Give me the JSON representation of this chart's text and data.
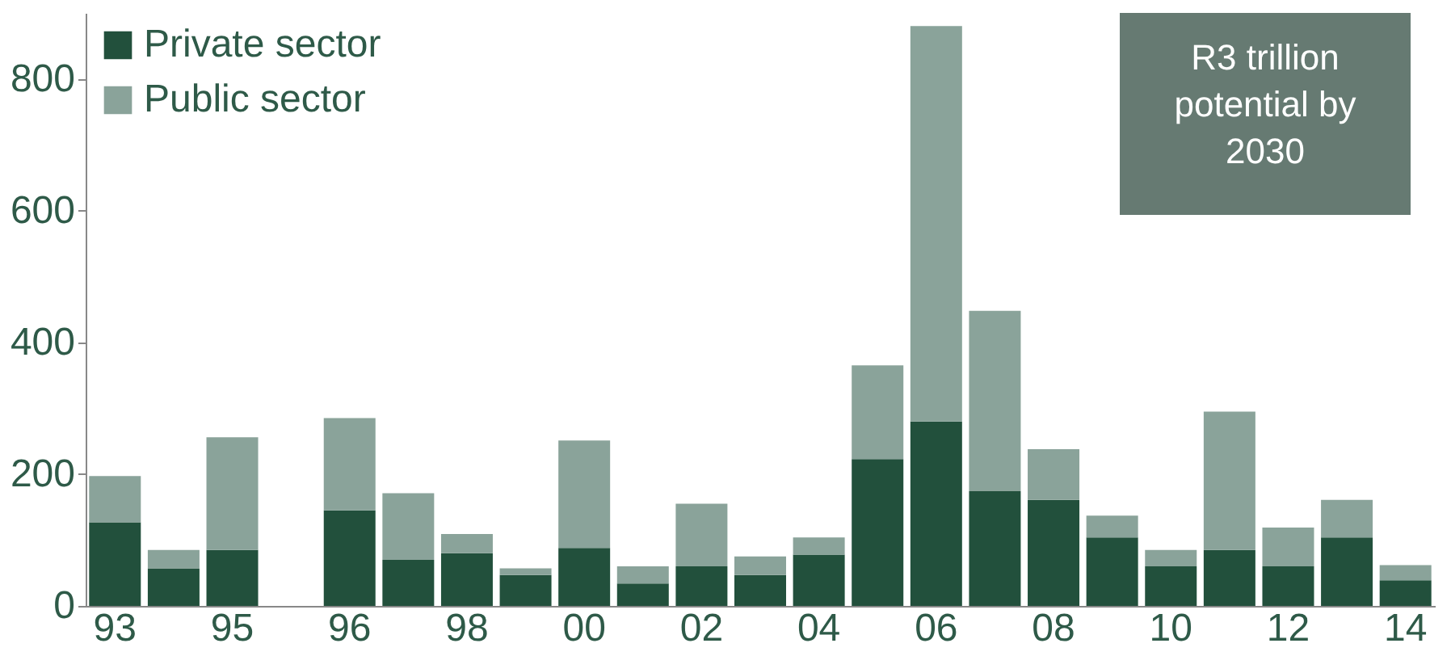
{
  "chart_data": {
    "type": "bar",
    "stacked": true,
    "categories": [
      "93",
      null,
      "95",
      null,
      "96",
      null,
      "98",
      null,
      "00",
      null,
      "02",
      null,
      "04",
      null,
      "06",
      null,
      "08",
      null,
      "10",
      null,
      "12",
      null,
      "14"
    ],
    "series": [
      {
        "name": "Private sector",
        "color": "#22503c",
        "values": [
          127,
          57,
          85,
          null,
          145,
          70,
          80,
          47,
          88,
          34,
          60,
          47,
          78,
          223,
          280,
          174,
          161,
          104,
          60,
          85,
          60,
          104,
          39
        ]
      },
      {
        "name": "Public sector",
        "color": "#8aa39a",
        "values": [
          70,
          28,
          171,
          null,
          140,
          101,
          29,
          10,
          163,
          26,
          95,
          28,
          26,
          142,
          600,
          274,
          77,
          33,
          25,
          210,
          59,
          57,
          23
        ]
      }
    ],
    "ylim": [
      0,
      900
    ],
    "yticks": [
      0,
      200,
      400,
      600,
      800
    ],
    "grid": false,
    "legend": "top left",
    "annotations": [
      "R3 trillion potential by 2030"
    ]
  }
}
